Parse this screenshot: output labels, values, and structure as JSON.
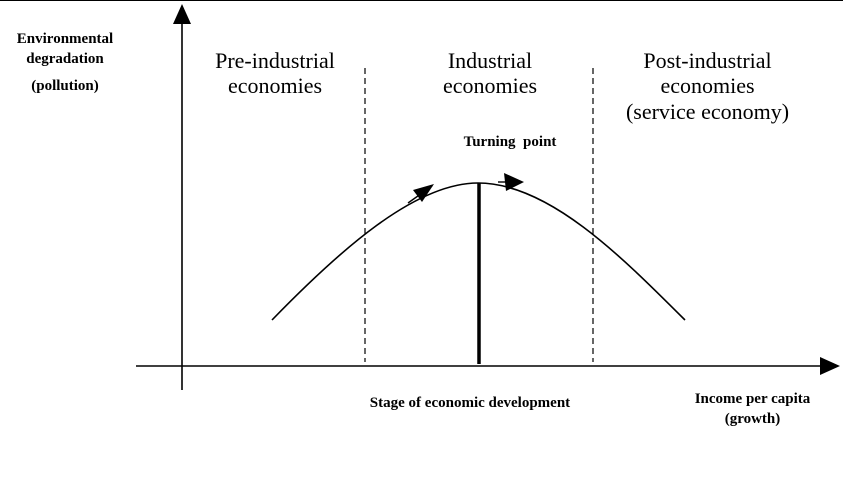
{
  "axes": {
    "y_label_lines": [
      "Environmental",
      "degradation",
      "(pollution)"
    ],
    "x_label_lines": [
      "Income per capita",
      "(growth)"
    ]
  },
  "regions": [
    {
      "lines": [
        "Pre-industrial",
        "economies"
      ]
    },
    {
      "lines": [
        "Industrial",
        "economies"
      ]
    },
    {
      "lines": [
        "Post-industrial",
        "economies",
        "(service economy)"
      ]
    }
  ],
  "turning_point_label": "Turning  point",
  "stage_label": "Stage of economic development"
}
